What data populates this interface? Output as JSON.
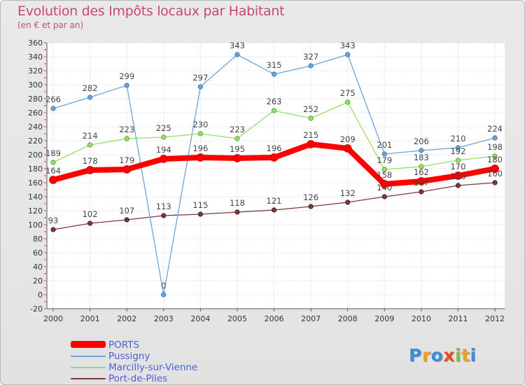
{
  "header": {
    "title": "Evolution des Impôts locaux par Habitant",
    "subtitle": "(en € et par an)"
  },
  "logo": {
    "letters": [
      {
        "ch": "P",
        "color": "#3e8ee0"
      },
      {
        "ch": "r",
        "color": "#f0a020"
      },
      {
        "ch": "o",
        "color": "#3e8ee0"
      },
      {
        "ch": "x",
        "color": "#e84d1e"
      },
      {
        "ch": "i",
        "color": "#7cc242"
      },
      {
        "ch": "t",
        "color": "#f0a020"
      },
      {
        "ch": "i",
        "color": "#3e8ee0"
      }
    ]
  },
  "chart_data": {
    "type": "line",
    "title": "Evolution des Impôts locaux par Habitant",
    "subtitle": "(en € et par an)",
    "xlabel": "",
    "ylabel": "",
    "x": [
      "2000",
      "2001",
      "2002",
      "2003",
      "2004",
      "2005",
      "2006",
      "2007",
      "2008",
      "2009",
      "2010",
      "2011",
      "2012"
    ],
    "ylim": [
      -20,
      360
    ],
    "yticks": [
      -20,
      0,
      20,
      40,
      60,
      80,
      100,
      120,
      140,
      160,
      180,
      200,
      220,
      240,
      260,
      280,
      300,
      320,
      340,
      360
    ],
    "grid": true,
    "legend_position": "bottom-left",
    "series": [
      {
        "name": "PORTS",
        "color": "#ff0000",
        "values": [
          164,
          178,
          179,
          194,
          196,
          195,
          196,
          215,
          209,
          158,
          162,
          170,
          180
        ],
        "labels": [
          "164",
          "178",
          "179",
          "194",
          "196",
          "195",
          "196",
          "215",
          "209",
          "158",
          "162",
          "170",
          "180"
        ]
      },
      {
        "name": "Pussigny",
        "color": "#6fa3d6",
        "values": [
          266,
          282,
          299,
          0,
          297,
          343,
          315,
          327,
          343,
          201,
          206,
          210,
          224
        ],
        "labels": [
          "266",
          "282",
          "299",
          "0",
          "297",
          "343",
          "315",
          "327",
          "343",
          "201",
          "206",
          "210",
          "224"
        ]
      },
      {
        "name": "Marcilly-sur-Vienne",
        "color": "#94df6a",
        "values": [
          189,
          214,
          223,
          225,
          230,
          223,
          263,
          252,
          275,
          179,
          183,
          192,
          198
        ],
        "labels": [
          "189",
          "214",
          "223",
          "225",
          "230",
          "223",
          "263",
          "252",
          "275",
          "179",
          "183",
          "192",
          "198"
        ]
      },
      {
        "name": "Port-de-Piles",
        "color": "#7a3a3a",
        "values": [
          93,
          102,
          107,
          113,
          115,
          118,
          121,
          126,
          132,
          140,
          147,
          156,
          160
        ],
        "labels": [
          "93",
          "102",
          "107",
          "113",
          "115",
          "118",
          "121",
          "126",
          "132",
          "140",
          "147",
          "156",
          "160"
        ]
      }
    ]
  }
}
